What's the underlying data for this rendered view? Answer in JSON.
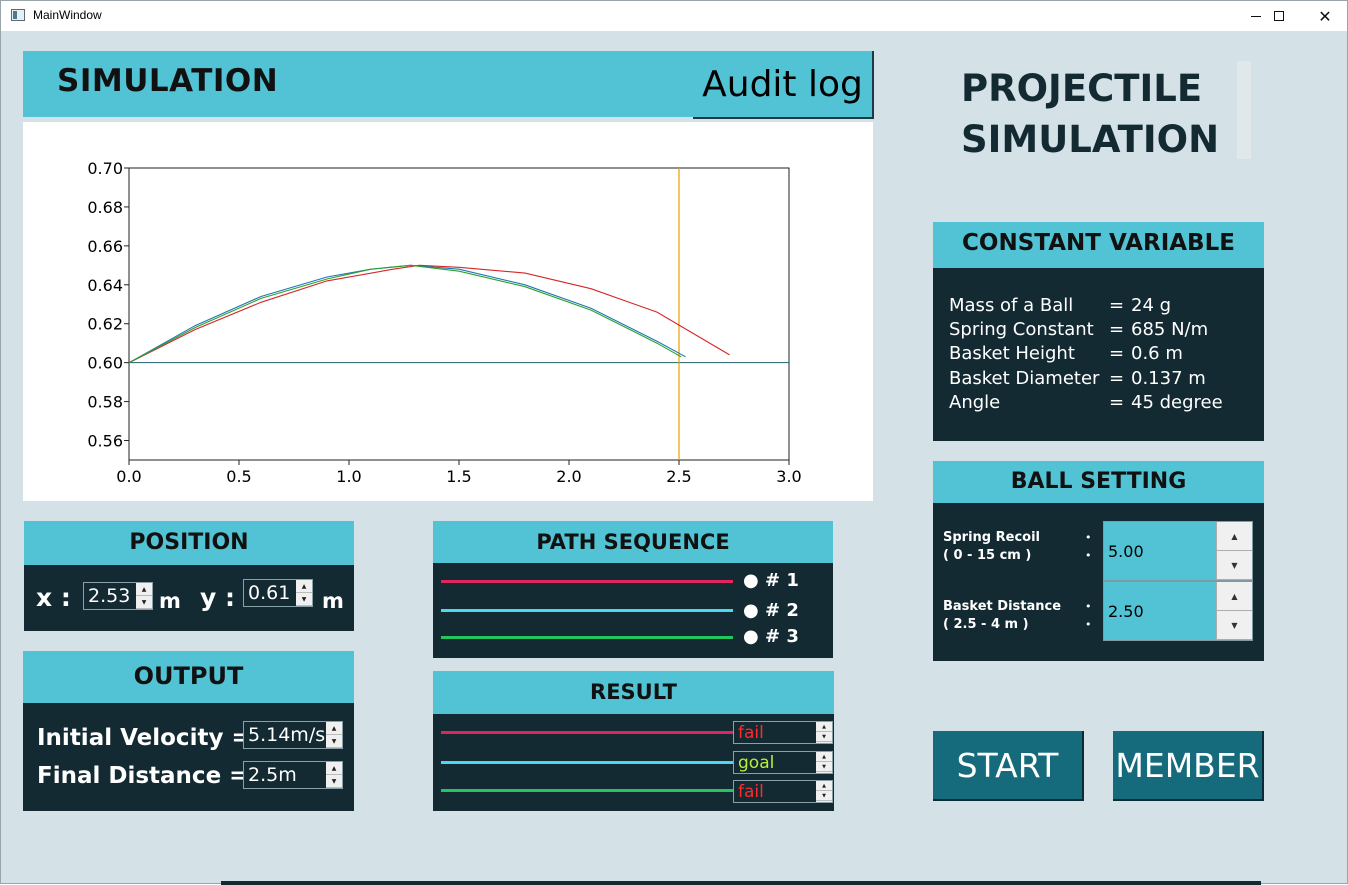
{
  "window": {
    "title": "MainWindow",
    "minimize": "",
    "maximize": "",
    "close": "✕"
  },
  "simulation": {
    "title": "SIMULATION",
    "audit_label": "Audit log"
  },
  "app_title": {
    "line1": "PROJECTILE",
    "line2": "SIMULATION"
  },
  "chart_data": {
    "type": "line",
    "xlim": [
      0.0,
      3.0
    ],
    "ylim": [
      0.55,
      0.7
    ],
    "x_ticks": [
      "0.0",
      "0.5",
      "1.0",
      "1.5",
      "2.0",
      "2.5",
      "3.0"
    ],
    "y_ticks": [
      "0.56",
      "0.58",
      "0.60",
      "0.62",
      "0.64",
      "0.66",
      "0.68",
      "0.70"
    ],
    "grid": false,
    "series": [
      {
        "color": "#d62728",
        "x": [
          0.0,
          0.3,
          0.6,
          0.9,
          1.2,
          1.32,
          1.5,
          1.8,
          2.1,
          2.4,
          2.73
        ],
        "y": [
          0.6,
          0.617,
          0.631,
          0.642,
          0.648,
          0.65,
          0.649,
          0.646,
          0.638,
          0.626,
          0.604
        ]
      },
      {
        "color": "#1f77b4",
        "x": [
          0.0,
          0.3,
          0.6,
          0.9,
          1.1,
          1.28,
          1.5,
          1.8,
          2.1,
          2.4,
          2.53
        ],
        "y": [
          0.6,
          0.619,
          0.634,
          0.644,
          0.648,
          0.65,
          0.648,
          0.64,
          0.628,
          0.611,
          0.603
        ]
      },
      {
        "color": "#2ca02c",
        "x": [
          0.0,
          0.3,
          0.6,
          0.9,
          1.1,
          1.28,
          1.5,
          1.8,
          2.1,
          2.4,
          2.51
        ],
        "y": [
          0.6,
          0.618,
          0.633,
          0.643,
          0.648,
          0.65,
          0.647,
          0.639,
          0.627,
          0.61,
          0.603
        ]
      }
    ],
    "hlines": [
      {
        "y": 0.6,
        "color": "#1f5f6f"
      }
    ],
    "vlines": [
      {
        "x": 2.5,
        "color": "#e8a000"
      }
    ]
  },
  "constants": {
    "title": "CONSTANT VARIABLE",
    "rows": [
      {
        "label": "Mass of a Ball",
        "eq": "=",
        "value": "24 g"
      },
      {
        "label": "Spring Constant",
        "eq": "=",
        "value": "685 N/m"
      },
      {
        "label": "Basket Height",
        "eq": "=",
        "value": "0.6 m"
      },
      {
        "label": "Basket Diameter",
        "eq": "=",
        "value": "0.137 m"
      },
      {
        "label": "Angle",
        "eq": "=",
        "value": "45 degree"
      }
    ]
  },
  "ball_setting": {
    "title": "BALL SETTING",
    "recoil_label1": "Spring Recoil",
    "recoil_label2": "( 0 - 15 cm )",
    "recoil_value": "5.00",
    "distance_label1": "Basket Distance",
    "distance_label2": "( 2.5 - 4 m )",
    "distance_value": "2.50",
    "dots": "•\n•"
  },
  "buttons": {
    "start": "START",
    "member": "MEMBER"
  },
  "position": {
    "title": "POSITION",
    "x_label": "x :",
    "x_value": "2.53",
    "x_unit": "m",
    "y_label": "y :",
    "y_value": "0.61",
    "y_unit": "m"
  },
  "output": {
    "title": "OUTPUT",
    "velocity_label": "Initial Velocity  =",
    "velocity_value": "5.14m/s",
    "distance_label": "Final Distance =",
    "distance_value": "2.5m"
  },
  "path_sequence": {
    "title": "PATH SEQUENCE",
    "items": [
      {
        "label": "● # 1",
        "color": "#e0245e"
      },
      {
        "label": "● # 2",
        "color": "#4dd8f0"
      },
      {
        "label": "● # 3",
        "color": "#22c55e"
      }
    ]
  },
  "result": {
    "title": "RESULT",
    "items": [
      {
        "value": "fail",
        "color": "#ff2a2a",
        "line_color": "#e0245e"
      },
      {
        "value": "goal",
        "color": "#b6f03c",
        "line_color": "#4dd8f0"
      },
      {
        "value": "fail",
        "color": "#ff2a2a",
        "line_color": "#22c55e"
      }
    ]
  }
}
